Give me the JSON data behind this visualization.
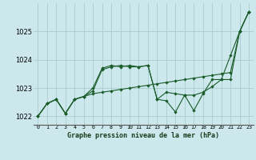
{
  "title": "Graphe pression niveau de la mer (hPa)",
  "background_color": "#cce8ec",
  "grid_color": "#aacccc",
  "line_color": "#1a5c2a",
  "x_labels": [
    "0",
    "1",
    "2",
    "3",
    "4",
    "5",
    "6",
    "7",
    "8",
    "9",
    "10",
    "11",
    "12",
    "13",
    "14",
    "15",
    "16",
    "17",
    "18",
    "19",
    "20",
    "21",
    "22",
    "23"
  ],
  "ylim": [
    1021.7,
    1026.0
  ],
  "yticks": [
    1022,
    1023,
    1024,
    1025
  ],
  "series": [
    [
      1022.0,
      1022.45,
      1022.6,
      1022.1,
      1022.6,
      1022.7,
      1022.8,
      1022.85,
      1022.9,
      1022.95,
      1023.0,
      1023.05,
      1023.1,
      1023.15,
      1023.2,
      1023.25,
      1023.3,
      1023.35,
      1023.4,
      1023.45,
      1023.5,
      1023.55,
      1025.0,
      1025.7
    ],
    [
      1022.0,
      1022.45,
      1022.6,
      1022.1,
      1022.6,
      1022.7,
      1022.9,
      1023.65,
      1023.75,
      1023.8,
      1023.75,
      1023.75,
      1023.8,
      1022.6,
      1022.85,
      1022.8,
      1022.75,
      1022.75,
      1022.85,
      1023.05,
      1023.3,
      1024.15,
      1025.0,
      1025.7
    ],
    [
      1022.0,
      1022.45,
      1022.6,
      1022.1,
      1022.6,
      1022.7,
      1023.0,
      1023.7,
      1023.8,
      1023.75,
      1023.8,
      1023.75,
      1023.8,
      1022.6,
      1022.55,
      1022.15,
      1022.75,
      1022.2,
      1022.8,
      1023.3,
      1023.3,
      1023.3,
      1025.0,
      1025.7
    ]
  ]
}
